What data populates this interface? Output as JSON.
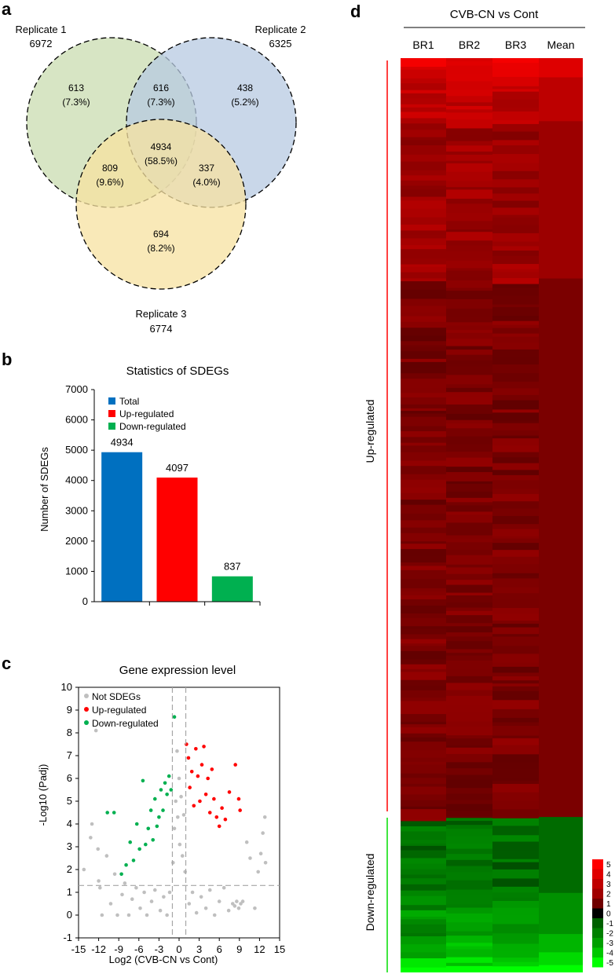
{
  "panels": {
    "a": {
      "letter": "a",
      "sets": [
        {
          "name": "Replicate 1",
          "count": "6972",
          "color": "#c9dcb0"
        },
        {
          "name": "Replicate 2",
          "count": "6325",
          "color": "#b7c9e2"
        },
        {
          "name": "Replicate 3",
          "count": "6774",
          "color": "#f7e1a0"
        }
      ],
      "regions": [
        {
          "id": "only1",
          "value": "613",
          "pct": "(7.3%)"
        },
        {
          "id": "only2",
          "value": "438",
          "pct": "(5.2%)"
        },
        {
          "id": "only3",
          "value": "694",
          "pct": "(8.2%)"
        },
        {
          "id": "r12",
          "value": "616",
          "pct": "(7.3%)"
        },
        {
          "id": "r13",
          "value": "809",
          "pct": "(9.6%)"
        },
        {
          "id": "r23",
          "value": "337",
          "pct": "(4.0%)"
        },
        {
          "id": "all",
          "value": "4934",
          "pct": "(58.5%)"
        }
      ]
    },
    "b": {
      "letter": "b"
    },
    "c": {
      "letter": "c"
    },
    "d": {
      "letter": "d",
      "heading": "CVB-CN vs Cont",
      "up_label": "Up-regulated",
      "down_label": "Down-regulated",
      "up_color": "#ff0000",
      "down_color": "#00dd00"
    }
  },
  "chart_data": [
    {
      "type": "bar",
      "title": "Statistics of SDEGs",
      "ylabel": "Number of SDEGs",
      "xlabel": "",
      "ylim": [
        0,
        7000
      ],
      "yticks": [
        "0",
        "1000",
        "2000",
        "3000",
        "4000",
        "5000",
        "6000",
        "7000"
      ],
      "categories": [
        "Total",
        "Up-regulated",
        "Down-regulated"
      ],
      "values": [
        4934,
        4097,
        837
      ],
      "value_labels": [
        "4934",
        "4097",
        "837"
      ],
      "colors": [
        "#0070c0",
        "#ff0000",
        "#00b050"
      ],
      "legend": "top-left",
      "grid": false
    },
    {
      "type": "scatter",
      "title": "Gene expression level",
      "xlabel": "Log2 (CVB-CN vs Cont)",
      "ylabel": "-Log10 (Padj)",
      "xlim": [
        -15,
        15
      ],
      "ylim": [
        -1,
        10
      ],
      "xticks": [
        "-15",
        "-12",
        "-9",
        "-6",
        "-3",
        "0",
        "3",
        "6",
        "9",
        "12",
        "15"
      ],
      "yticks": [
        "-1",
        "0",
        "1",
        "2",
        "3",
        "4",
        "5",
        "6",
        "7",
        "8",
        "9",
        "10"
      ],
      "thresholds": {
        "x": [
          -1,
          1
        ],
        "y": 1.3
      },
      "legend": "top-left",
      "series": [
        {
          "name": "Not SDEGs",
          "color": "#bfbfbf",
          "points": [
            [
              -14.2,
              2.0
            ],
            [
              -13.2,
              3.4
            ],
            [
              -13.0,
              4.0
            ],
            [
              -12.4,
              8.1
            ],
            [
              -12.1,
              2.9
            ],
            [
              -12.0,
              1.5
            ],
            [
              -11.8,
              1.2
            ],
            [
              -11.5,
              0.0
            ],
            [
              -10.8,
              2.6
            ],
            [
              -10.2,
              0.5
            ],
            [
              -9.6,
              1.8
            ],
            [
              -9.2,
              0.0
            ],
            [
              -8.5,
              0.9
            ],
            [
              -8.1,
              1.4
            ],
            [
              -7.5,
              0.0
            ],
            [
              -7.0,
              0.7
            ],
            [
              -6.4,
              1.2
            ],
            [
              -5.8,
              0.3
            ],
            [
              -5.2,
              1.0
            ],
            [
              -4.8,
              0.0
            ],
            [
              -4.1,
              0.6
            ],
            [
              -3.6,
              1.1
            ],
            [
              -2.8,
              0.2
            ],
            [
              -2.3,
              0.8
            ],
            [
              -1.8,
              0.0
            ],
            [
              -1.4,
              1.0
            ],
            [
              -0.9,
              2.3
            ],
            [
              -0.7,
              3.8
            ],
            [
              -0.5,
              5.0
            ],
            [
              -0.3,
              7.2
            ],
            [
              -0.2,
              4.3
            ],
            [
              0.0,
              6.0
            ],
            [
              0.1,
              3.1
            ],
            [
              0.3,
              5.2
            ],
            [
              0.5,
              2.6
            ],
            [
              0.7,
              4.4
            ],
            [
              0.9,
              1.9
            ],
            [
              1.5,
              0.5
            ],
            [
              2.0,
              1.0
            ],
            [
              2.6,
              0.1
            ],
            [
              3.3,
              0.8
            ],
            [
              4.0,
              0.3
            ],
            [
              4.6,
              1.1
            ],
            [
              5.3,
              0.0
            ],
            [
              6.0,
              0.6
            ],
            [
              6.7,
              1.2
            ],
            [
              7.4,
              0.2
            ],
            [
              8.0,
              0.5
            ],
            [
              8.3,
              0.4
            ],
            [
              8.6,
              0.6
            ],
            [
              8.9,
              0.3
            ],
            [
              9.2,
              0.5
            ],
            [
              9.5,
              0.6
            ],
            [
              10.1,
              3.2
            ],
            [
              10.6,
              2.5
            ],
            [
              11.3,
              0.3
            ],
            [
              11.8,
              1.9
            ],
            [
              12.2,
              2.7
            ],
            [
              12.5,
              3.6
            ],
            [
              12.8,
              4.3
            ],
            [
              12.9,
              2.3
            ]
          ]
        },
        {
          "name": "Up-regulated",
          "color": "#ff0000",
          "points": [
            [
              1.1,
              7.5
            ],
            [
              1.4,
              6.9
            ],
            [
              1.6,
              5.6
            ],
            [
              1.9,
              6.3
            ],
            [
              2.2,
              4.8
            ],
            [
              2.5,
              7.3
            ],
            [
              2.8,
              6.1
            ],
            [
              3.1,
              5.0
            ],
            [
              3.4,
              6.6
            ],
            [
              3.7,
              7.4
            ],
            [
              4.0,
              5.3
            ],
            [
              4.3,
              6.0
            ],
            [
              4.6,
              4.5
            ],
            [
              4.9,
              6.4
            ],
            [
              5.2,
              5.1
            ],
            [
              5.6,
              4.3
            ],
            [
              6.0,
              3.9
            ],
            [
              6.4,
              4.7
            ],
            [
              6.9,
              4.2
            ],
            [
              7.5,
              5.4
            ],
            [
              8.4,
              6.6
            ],
            [
              8.9,
              5.1
            ],
            [
              9.1,
              4.6
            ]
          ]
        },
        {
          "name": "Down-regulated",
          "color": "#00b050",
          "points": [
            [
              -1.2,
              5.5
            ],
            [
              -1.5,
              6.1
            ],
            [
              -1.8,
              5.3
            ],
            [
              -2.1,
              5.8
            ],
            [
              -2.4,
              4.6
            ],
            [
              -2.7,
              5.5
            ],
            [
              -3.0,
              4.3
            ],
            [
              -3.3,
              3.9
            ],
            [
              -3.6,
              5.1
            ],
            [
              -3.9,
              3.3
            ],
            [
              -4.2,
              4.6
            ],
            [
              -4.6,
              3.8
            ],
            [
              -5.0,
              3.1
            ],
            [
              -5.4,
              5.9
            ],
            [
              -5.9,
              2.9
            ],
            [
              -6.3,
              4.0
            ],
            [
              -6.8,
              2.4
            ],
            [
              -7.3,
              3.2
            ],
            [
              -7.9,
              2.2
            ],
            [
              -8.6,
              1.8
            ],
            [
              -9.7,
              4.5
            ],
            [
              -10.7,
              4.5
            ],
            [
              -0.7,
              8.7
            ]
          ]
        }
      ]
    },
    {
      "type": "heatmap",
      "title": "CVB-CN vs Cont",
      "columns": [
        "BR1",
        "BR2",
        "BR3",
        "Mean"
      ],
      "row_groups": [
        {
          "name": "Up-regulated",
          "genes": 4097
        },
        {
          "name": "Down-regulated",
          "genes": 837
        }
      ],
      "mean_bands": [
        {
          "value": 4,
          "fraction": 0.021
        },
        {
          "value": 3,
          "fraction": 0.048
        },
        {
          "value": 2,
          "fraction": 0.172
        },
        {
          "value": 1,
          "fraction": 0.589
        },
        {
          "value": -1,
          "fraction": 0.083
        },
        {
          "value": -2,
          "fraction": 0.045
        },
        {
          "value": -3,
          "fraction": 0.02
        },
        {
          "value": -4,
          "fraction": 0.014
        },
        {
          "value": -5,
          "fraction": 0.008
        }
      ],
      "scale": {
        "min": -5,
        "max": 5,
        "labels": [
          "5",
          "4",
          "3",
          "2",
          "1",
          "0",
          "-1",
          "-2",
          "-3",
          "-4",
          "-5"
        ],
        "colors": [
          "#ff0000",
          "#e00000",
          "#c00000",
          "#a00000",
          "#700000",
          "#000000",
          "#006000",
          "#008000",
          "#00a000",
          "#00c800",
          "#00ff00"
        ]
      }
    }
  ]
}
